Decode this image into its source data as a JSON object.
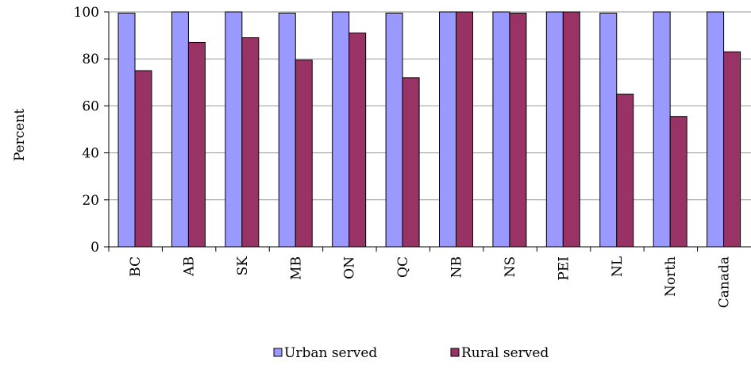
{
  "chart_data": {
    "type": "bar",
    "ylabel": "Percent",
    "ylim": [
      0,
      100
    ],
    "yticks": [
      0,
      20,
      40,
      60,
      80,
      100
    ],
    "grid": true,
    "legend_position": "bottom",
    "categories": [
      "BC",
      "AB",
      "SK",
      "MB",
      "ON",
      "QC",
      "NB",
      "NS",
      "PEI",
      "NL",
      "North",
      "Canada"
    ],
    "series": [
      {
        "name": "Urban served",
        "color": "#9999ff",
        "values": [
          99.5,
          100,
          100,
          99.5,
          100,
          99.5,
          100,
          100,
          100,
          99.5,
          100,
          100
        ]
      },
      {
        "name": "Rural served",
        "color": "#993366",
        "values": [
          75,
          87,
          89,
          79.5,
          91,
          72,
          100,
          99.5,
          100,
          65,
          55.5,
          83
        ]
      }
    ]
  }
}
